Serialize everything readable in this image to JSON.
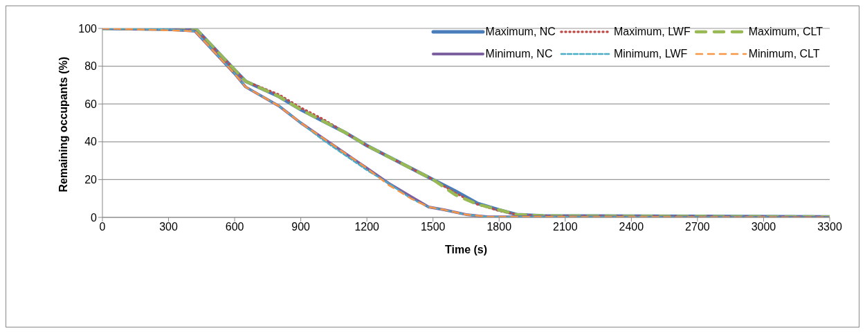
{
  "chart_data": {
    "type": "line",
    "xlabel": "Time (s)",
    "ylabel": "Remaining occupants (%)",
    "xlim": [
      0,
      3300
    ],
    "xticks": [
      0,
      300,
      600,
      900,
      1200,
      1500,
      1800,
      2100,
      2400,
      2700,
      3000,
      3300
    ],
    "ylim": [
      0,
      100
    ],
    "yticks": [
      0,
      20,
      40,
      60,
      80,
      100
    ],
    "grid": "y",
    "legend": "top right",
    "marker": "none",
    "series": [
      {
        "name": "Maximum, NC",
        "color": "#4a7ebb",
        "line_style": "solid",
        "x": [
          0,
          300,
          430,
          600,
          650,
          800,
          900,
          1000,
          1100,
          1200,
          1300,
          1400,
          1500,
          1600,
          1700,
          1800,
          1880,
          2000,
          3300
        ],
        "values": [
          100,
          99.5,
          99,
          78,
          72,
          64,
          57,
          51,
          45,
          38,
          32,
          26,
          20,
          14,
          7.5,
          4,
          1.5,
          0.8,
          0.3
        ]
      },
      {
        "name": "Maximum, LWF",
        "color": "#be4b48",
        "line_style": "dotted",
        "x": [
          0,
          300,
          430,
          600,
          650,
          800,
          900,
          1000,
          1100,
          1200,
          1300,
          1400,
          1500,
          1600,
          1700,
          1800,
          1880,
          2000,
          3300
        ],
        "values": [
          100,
          99.5,
          99,
          78,
          72,
          65,
          58,
          52,
          45,
          38,
          32,
          26,
          20,
          13,
          7,
          3.5,
          1.5,
          0.8,
          0.3
        ]
      },
      {
        "name": "Maximum, CLT",
        "color": "#98b954",
        "line_style": "dashed",
        "x": [
          0,
          300,
          430,
          600,
          650,
          800,
          900,
          1000,
          1100,
          1200,
          1300,
          1400,
          1500,
          1600,
          1700,
          1800,
          1880,
          2000,
          3300
        ],
        "values": [
          100,
          99.5,
          99,
          78,
          72,
          64,
          57,
          51,
          45,
          38,
          32,
          26,
          20,
          12,
          7,
          4,
          1.5,
          0.8,
          0.3
        ]
      },
      {
        "name": "Minimum, NC",
        "color": "#7d60a0",
        "line_style": "solid",
        "x": [
          0,
          300,
          420,
          600,
          650,
          800,
          900,
          1000,
          1100,
          1200,
          1300,
          1400,
          1480,
          1550,
          1650,
          1750,
          3300
        ],
        "values": [
          100,
          99.5,
          98.5,
          76,
          69,
          59,
          50,
          42,
          34,
          26,
          18,
          11,
          5.5,
          4,
          1.5,
          0.3,
          0
        ]
      },
      {
        "name": "Minimum, LWF",
        "color": "#4bacc6",
        "line_style": "dashed",
        "x": [
          0,
          300,
          420,
          600,
          650,
          800,
          900,
          1000,
          1100,
          1200,
          1300,
          1400,
          1480,
          1550,
          1650,
          1750,
          3300
        ],
        "values": [
          100,
          99.5,
          98.5,
          76,
          69,
          59,
          50,
          41,
          33,
          25,
          18,
          10,
          5.5,
          4,
          1.5,
          0.3,
          0
        ]
      },
      {
        "name": "Minimum, CLT",
        "color": "#f79646",
        "line_style": "dashed",
        "x": [
          0,
          300,
          420,
          600,
          650,
          800,
          900,
          1000,
          1100,
          1200,
          1300,
          1400,
          1480,
          1550,
          1650,
          1750,
          3300
        ],
        "values": [
          100,
          99,
          98.5,
          76,
          69,
          59,
          50,
          42,
          34,
          26,
          17,
          10,
          5.5,
          4,
          1.5,
          0.3,
          0
        ]
      }
    ]
  }
}
